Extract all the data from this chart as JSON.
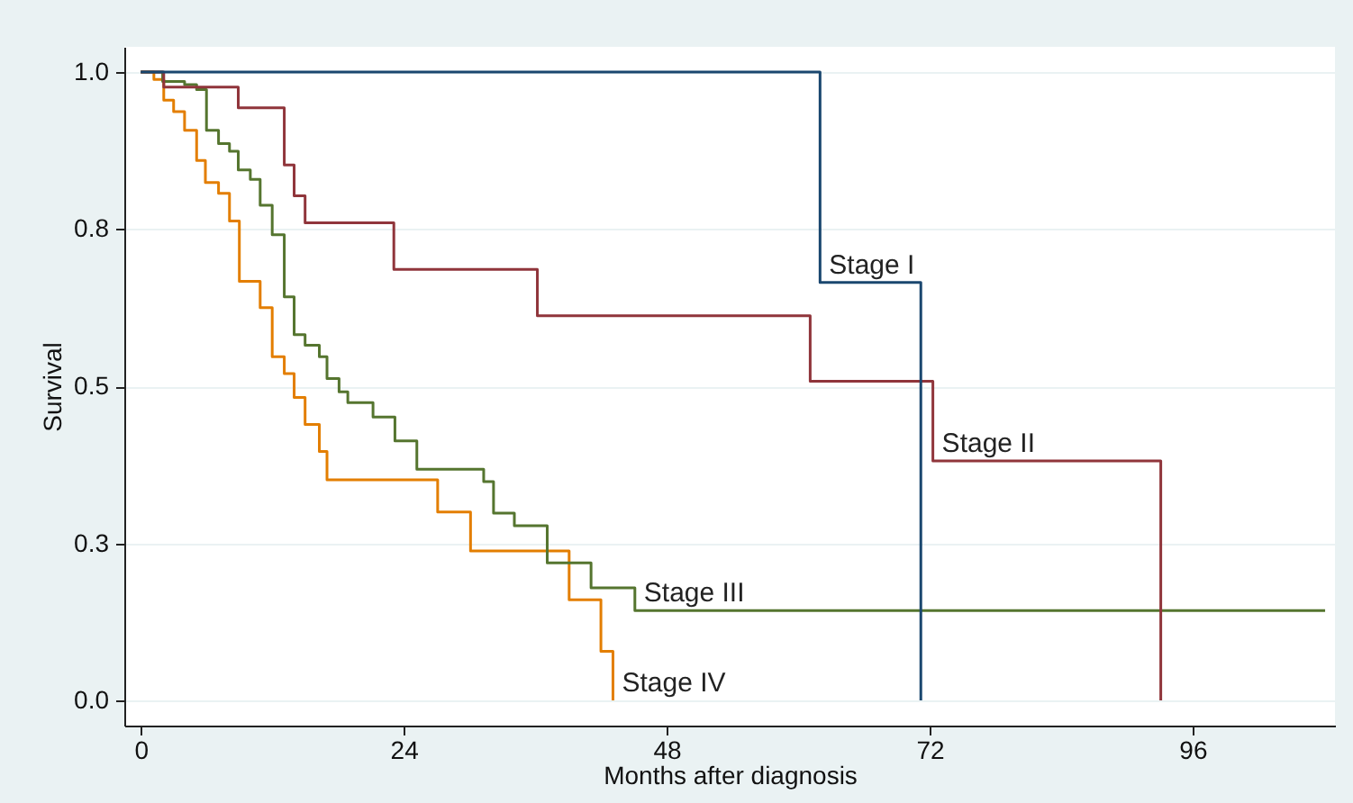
{
  "chart_data": {
    "type": "step",
    "xlabel": "Months after diagnosis",
    "ylabel": "Survival",
    "xlim": [
      -1.5,
      109
    ],
    "xticks": [
      0,
      24,
      48,
      72,
      96
    ],
    "ylim": [
      -0.04,
      1.04
    ],
    "yticks": [
      {
        "value": 0,
        "label": "0.0"
      },
      {
        "value": 0.25,
        "label": "0.3"
      },
      {
        "value": 0.5,
        "label": "0.5"
      },
      {
        "value": 0.75,
        "label": "0.8"
      },
      {
        "value": 1,
        "label": "1.0"
      }
    ],
    "grid": "y",
    "legend": false,
    "marker": "none",
    "line_style": "solid",
    "series": [
      {
        "color": "#1a476f",
        "x": [
          0,
          62.0,
          71.2
        ],
        "values": [
          1,
          0.665,
          0
        ]
      },
      {
        "color": "#90353b",
        "x": [
          0,
          2.1,
          8.9,
          13.1,
          14.0,
          15.0,
          23.1,
          36.2,
          61.1,
          72.3,
          93.1
        ],
        "values": [
          1,
          0.976,
          0.943,
          0.852,
          0.803,
          0.76,
          0.686,
          0.612,
          0.508,
          0.381,
          0
        ]
      },
      {
        "color": "#55752f",
        "x": [
          0,
          2.0,
          4.0,
          5.1,
          6.0,
          7.1,
          8.1,
          8.9,
          10.0,
          10.9,
          12.0,
          13.1,
          14.0,
          15.0,
          16.3,
          17.0,
          18.1,
          18.9,
          21.2,
          23.2,
          25.2,
          31.3,
          32.2,
          34.1,
          37.1,
          41.1,
          45.1,
          108.1
        ],
        "values": [
          1,
          0.985,
          0.98,
          0.972,
          0.907,
          0.886,
          0.874,
          0.844,
          0.829,
          0.788,
          0.741,
          0.642,
          0.582,
          0.565,
          0.547,
          0.512,
          0.491,
          0.474,
          0.451,
          0.413,
          0.368,
          0.348,
          0.298,
          0.278,
          0.219,
          0.179,
          0.143,
          0.143
        ]
      },
      {
        "color": "#e37e00",
        "x": [
          0,
          1.2,
          2.1,
          3.0,
          4.0,
          5.1,
          5.9,
          7.1,
          8.1,
          9.0,
          10.9,
          12.0,
          13.1,
          14.0,
          15.0,
          16.3,
          17.0,
          27.1,
          30.1,
          39.1,
          42.0,
          43.1
        ],
        "values": [
          1,
          0.988,
          0.955,
          0.937,
          0.907,
          0.859,
          0.824,
          0.807,
          0.763,
          0.667,
          0.625,
          0.547,
          0.52,
          0.482,
          0.439,
          0.396,
          0.351,
          0.3,
          0.238,
          0.16,
          0.078,
          0
        ]
      }
    ],
    "annotations": [
      {
        "text": "Stage I",
        "x": 62.0,
        "y": 0.665
      },
      {
        "text": "Stage II",
        "x": 72.3,
        "y": 0.381
      },
      {
        "text": "Stage III",
        "x": 45.1,
        "y": 0.143
      },
      {
        "text": "Stage IV",
        "x": 43.1,
        "y": 0
      }
    ]
  }
}
